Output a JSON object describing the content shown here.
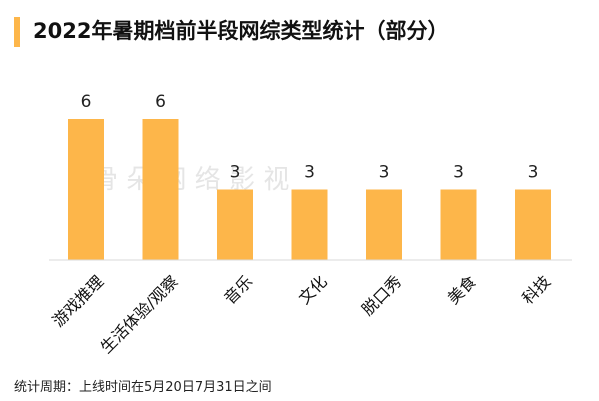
{
  "title": "2022年暑期档前半段网综类型统计（部分）",
  "footnote": "统计周期：上线时间在5月20日7月31日之间",
  "watermark": "骨 朵 网 络 影 视",
  "colors": {
    "accent": "#FDB64A",
    "bar": "#FDB64A"
  },
  "chart_data": {
    "type": "bar",
    "title": "2022年暑期档前半段网综类型统计（部分）",
    "xlabel": "",
    "ylabel": "",
    "categories": [
      "游戏推理",
      "生活体验/观察",
      "音乐",
      "文化",
      "脱口秀",
      "美食",
      "科技"
    ],
    "values": [
      6,
      6,
      3,
      3,
      3,
      3,
      3
    ],
    "ylim": [
      0,
      6
    ],
    "grid": false,
    "legend": "none"
  }
}
